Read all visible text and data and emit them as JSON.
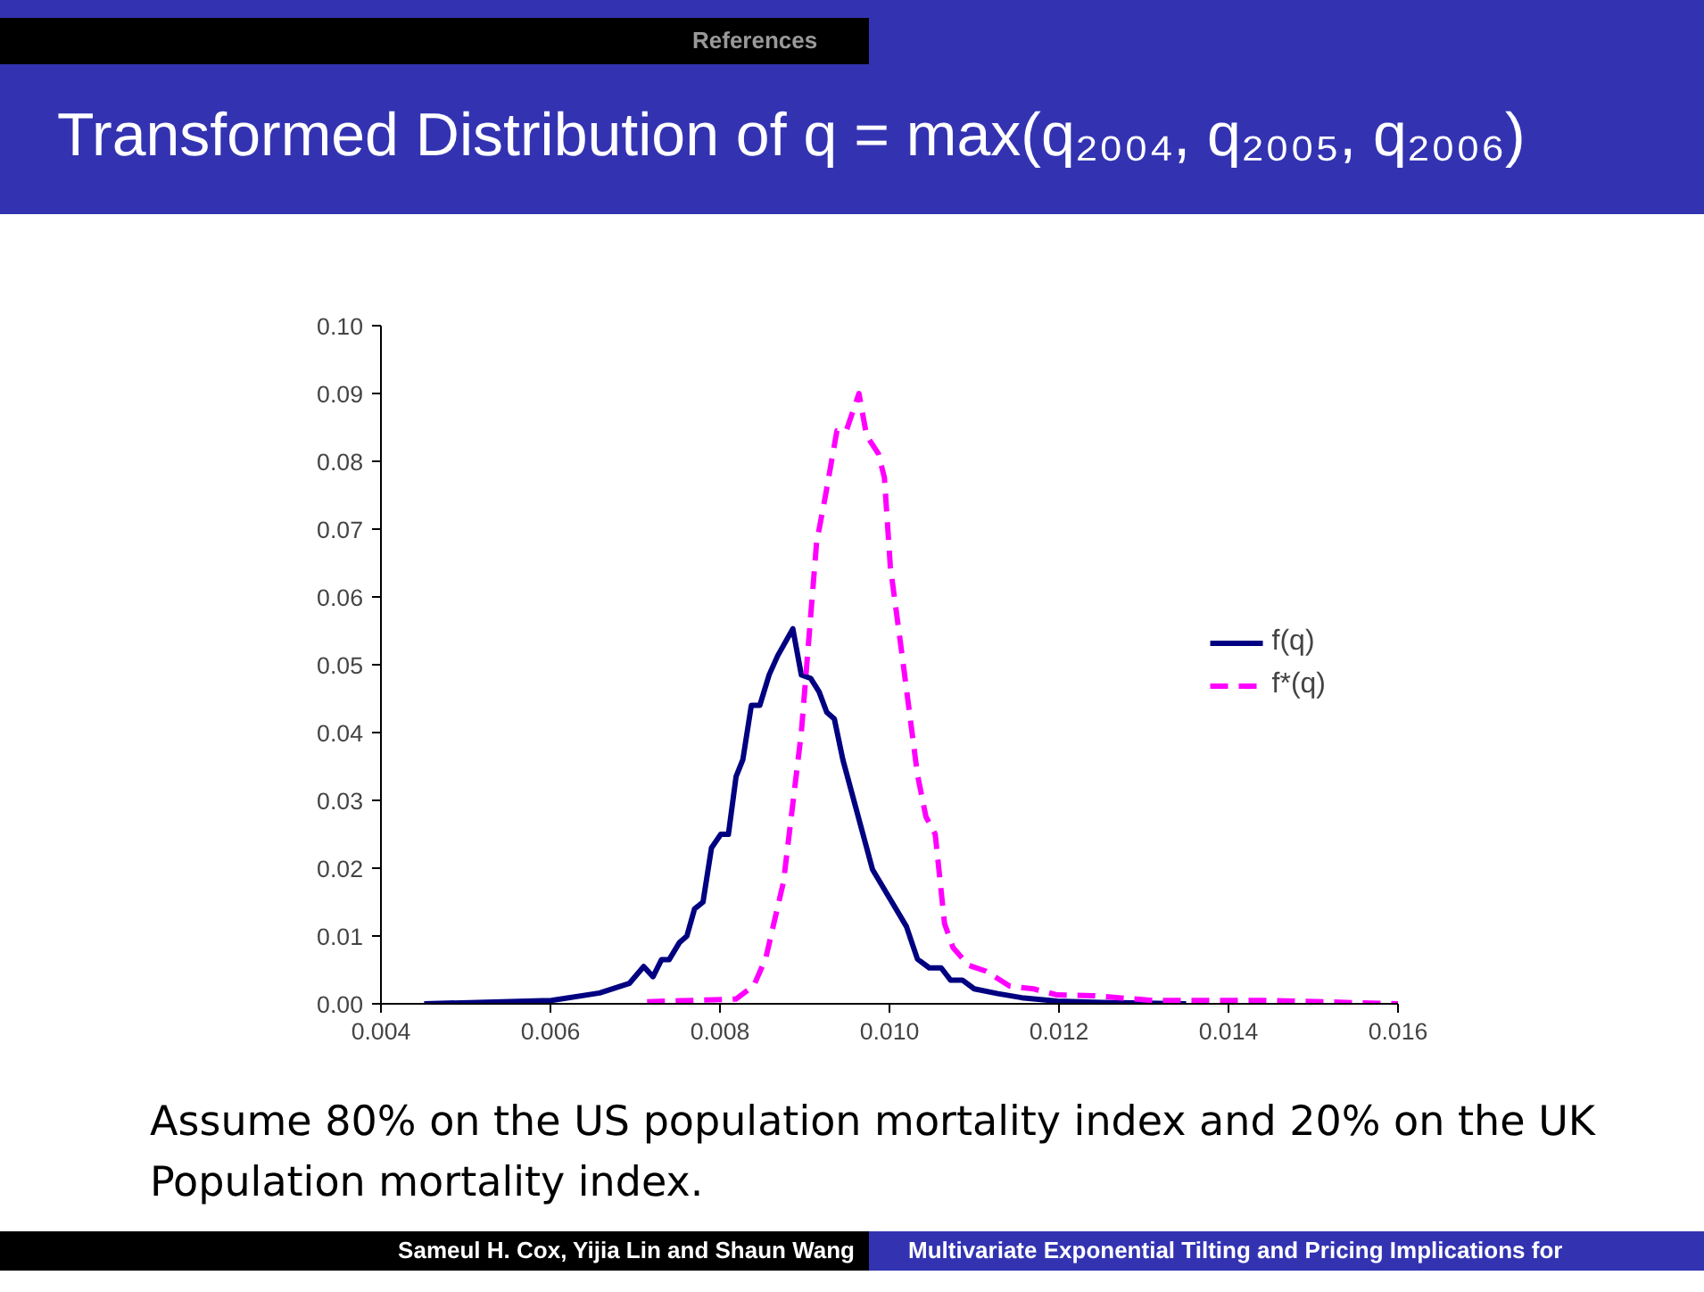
{
  "chart_data": {
    "type": "line",
    "title": "Transformed Distribution of q = max(q₂₀₀₄, q₂₀₀₅, q₂₀₀₆)",
    "annotations": [
      "References",
      "Assume 80% on the US population mortality index and 20% on the UK Population mortality index.",
      "Sameul H. Cox, Yijia Lin and Shaun Wang",
      "Multivariate Exponential Tilting and Pricing Implications for"
    ],
    "xlim": [
      0.004,
      0.016
    ],
    "xticks": [
      {
        "value": 0.004,
        "label": "0.004"
      },
      {
        "value": 0.006,
        "label": "0.006"
      },
      {
        "value": 0.008,
        "label": "0.008"
      },
      {
        "value": 0.01,
        "label": "0.010"
      },
      {
        "value": 0.012,
        "label": "0.012"
      },
      {
        "value": 0.014,
        "label": "0.014"
      },
      {
        "value": 0.016,
        "label": "0.016"
      }
    ],
    "ylim": [
      0,
      0.1
    ],
    "yticks": [
      {
        "value": 0,
        "label": "0.00"
      },
      0.01,
      0.02,
      0.03,
      0.04,
      0.05,
      0.06,
      0.07,
      0.08,
      0.09,
      {
        "value": 0.1,
        "label": "0.10"
      }
    ],
    "grid": false,
    "legend": "right",
    "series": [
      {
        "name": "f(q)",
        "color": "#000080",
        "line_style": "solid",
        "x": [
          0.00451,
          0.00601,
          0.00658,
          0.00693,
          0.0071,
          0.00721,
          0.00731,
          0.0074,
          0.00752,
          0.00761,
          0.0077,
          0.0078,
          0.0079,
          0.00801,
          0.0081,
          0.00819,
          0.00827,
          0.00837,
          0.00847,
          0.00858,
          0.00868,
          0.00886,
          0.00896,
          0.00907,
          0.00917,
          0.00926,
          0.00935,
          0.00945,
          0.0098,
          0.01001,
          0.0102,
          0.01033,
          0.01047,
          0.01061,
          0.01072,
          0.01086,
          0.011,
          0.01128,
          0.01156,
          0.01198,
          0.0125,
          0.0135
        ],
        "values": [
          0,
          0.0005,
          0.0016,
          0.003,
          0.0055,
          0.004,
          0.0065,
          0.0065,
          0.009,
          0.01,
          0.014,
          0.015,
          0.023,
          0.025,
          0.025,
          0.0335,
          0.036,
          0.044,
          0.044,
          0.0485,
          0.0513,
          0.0553,
          0.0485,
          0.048,
          0.046,
          0.043,
          0.042,
          0.036,
          0.0198,
          0.0154,
          0.0114,
          0.0066,
          0.0053,
          0.0053,
          0.0035,
          0.0035,
          0.0022,
          0.0015,
          0.0009,
          0.0004,
          0.0002,
          0
        ]
      },
      {
        "name": "f*(q)",
        "color": "#ff00ff",
        "line_style": "dashed",
        "x": [
          0.00714,
          0.00819,
          0.0084,
          0.00854,
          0.00875,
          0.00896,
          0.00914,
          0.00924,
          0.00938,
          0.00949,
          0.00964,
          0.00973,
          0.00987,
          0.00994,
          0.01001,
          0.01015,
          0.01033,
          0.01043,
          0.01054,
          0.01065,
          0.01075,
          0.01093,
          0.01114,
          0.01142,
          0.0117,
          0.01198,
          0.0124,
          0.0131,
          0.0145,
          0.016
        ],
        "values": [
          0.0003,
          0.0007,
          0.0027,
          0.0067,
          0.018,
          0.04,
          0.068,
          0.0746,
          0.0845,
          0.0845,
          0.09,
          0.0838,
          0.0811,
          0.0776,
          0.0645,
          0.0513,
          0.0338,
          0.0276,
          0.025,
          0.0118,
          0.0083,
          0.0057,
          0.0048,
          0.0026,
          0.0022,
          0.0013,
          0.0012,
          0.0005,
          0.0005,
          0
        ]
      }
    ]
  }
}
